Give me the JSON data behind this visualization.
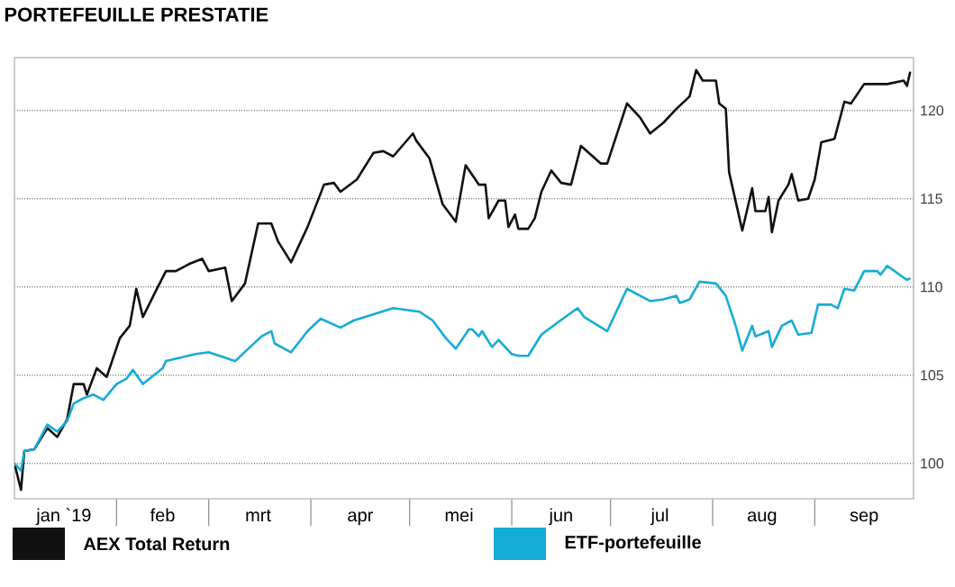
{
  "chart_data": {
    "type": "line",
    "title": "PORTEFEUILLE PRESTATIE",
    "xlim": [
      "2019-01-01",
      "2019-10-01"
    ],
    "xticks": [
      {
        "value": "2019-01-16",
        "label": "jan `19"
      },
      {
        "value": "2019-02-01",
        "label": null
      },
      {
        "value": "2019-02-15",
        "label": "feb"
      },
      {
        "value": "2019-03-01",
        "label": null
      },
      {
        "value": "2019-03-16",
        "label": "mrt"
      },
      {
        "value": "2019-04-01",
        "label": null
      },
      {
        "value": "2019-04-16",
        "label": "apr"
      },
      {
        "value": "2019-05-01",
        "label": null
      },
      {
        "value": "2019-05-16",
        "label": "mei"
      },
      {
        "value": "2019-06-01",
        "label": null
      },
      {
        "value": "2019-06-16",
        "label": "jun"
      },
      {
        "value": "2019-07-01",
        "label": null
      },
      {
        "value": "2019-07-16",
        "label": "jul"
      },
      {
        "value": "2019-08-01",
        "label": null
      },
      {
        "value": "2019-08-16",
        "label": "aug"
      },
      {
        "value": "2019-09-01",
        "label": null
      },
      {
        "value": "2019-09-16",
        "label": "sep"
      }
    ],
    "ylim": [
      98,
      123
    ],
    "yticks": [
      100,
      105,
      110,
      115,
      120
    ],
    "grid": "y",
    "legend": "bottom",
    "line_style": "solid",
    "marker": "none",
    "series": [
      {
        "name": "AEX Total Return",
        "color": "#111111",
        "x": [
          "2019-01-01",
          "2019-01-03",
          "2019-01-04",
          "2019-01-07",
          "2019-01-11",
          "2019-01-14",
          "2019-01-17",
          "2019-01-19",
          "2019-01-22",
          "2019-01-23",
          "2019-01-26",
          "2019-01-29",
          "2019-02-02",
          "2019-02-05",
          "2019-02-07",
          "2019-02-09",
          "2019-02-13",
          "2019-02-16",
          "2019-02-19",
          "2019-02-23",
          "2019-02-27",
          "2019-03-01",
          "2019-03-06",
          "2019-03-08",
          "2019-03-12",
          "2019-03-16",
          "2019-03-20",
          "2019-03-22",
          "2019-03-26",
          "2019-03-31",
          "2019-04-05",
          "2019-04-08",
          "2019-04-10",
          "2019-04-15",
          "2019-04-20",
          "2019-04-23",
          "2019-04-26",
          "2019-05-02",
          "2019-05-03",
          "2019-05-07",
          "2019-05-11",
          "2019-05-15",
          "2019-05-18",
          "2019-05-22",
          "2019-05-24",
          "2019-05-25",
          "2019-05-28",
          "2019-05-30",
          "2019-05-31",
          "2019-06-02",
          "2019-06-03",
          "2019-06-06",
          "2019-06-08",
          "2019-06-10",
          "2019-06-13",
          "2019-06-16",
          "2019-06-19",
          "2019-06-22",
          "2019-06-28",
          "2019-06-30",
          "2019-07-06",
          "2019-07-10",
          "2019-07-13",
          "2019-07-17",
          "2019-07-21",
          "2019-07-25",
          "2019-07-27",
          "2019-07-29",
          "2019-08-02",
          "2019-08-03",
          "2019-08-05",
          "2019-08-06",
          "2019-08-10",
          "2019-08-13",
          "2019-08-14",
          "2019-08-17",
          "2019-08-18",
          "2019-08-19",
          "2019-08-21",
          "2019-08-24",
          "2019-08-25",
          "2019-08-27",
          "2019-08-30",
          "2019-09-01",
          "2019-09-03",
          "2019-09-07",
          "2019-09-10",
          "2019-09-12",
          "2019-09-16",
          "2019-09-23",
          "2019-09-28",
          "2019-09-29",
          "2019-09-30"
        ],
        "values": [
          100,
          98.5,
          100.7,
          100.8,
          102.0,
          101.5,
          102.5,
          104.5,
          104.5,
          103.9,
          105.4,
          104.9,
          107.1,
          107.8,
          109.9,
          108.3,
          109.8,
          110.9,
          110.9,
          111.3,
          111.6,
          110.9,
          111.1,
          109.2,
          110.2,
          113.6,
          113.6,
          112.6,
          111.4,
          113.4,
          115.8,
          115.9,
          115.4,
          116.1,
          117.6,
          117.7,
          117.4,
          118.7,
          118.3,
          117.3,
          114.7,
          113.7,
          116.9,
          115.8,
          115.8,
          113.9,
          114.9,
          114.9,
          113.4,
          114.1,
          113.3,
          113.3,
          113.9,
          115.4,
          116.6,
          115.9,
          115.8,
          118.0,
          117.0,
          117.0,
          120.4,
          119.6,
          118.7,
          119.3,
          120.1,
          120.8,
          122.3,
          121.7,
          121.7,
          120.4,
          120.1,
          116.5,
          113.2,
          115.6,
          114.3,
          114.3,
          115.1,
          113.1,
          114.9,
          115.8,
          116.4,
          114.9,
          115.0,
          116.1,
          118.2,
          118.4,
          120.5,
          120.4,
          121.5,
          121.5,
          121.7,
          121.4,
          122.2
        ]
      },
      {
        "name": "ETF-portefeuille",
        "color": "#14acd6",
        "x": [
          "2019-01-01",
          "2019-01-03",
          "2019-01-04",
          "2019-01-07",
          "2019-01-11",
          "2019-01-14",
          "2019-01-17",
          "2019-01-19",
          "2019-01-22",
          "2019-01-25",
          "2019-01-28",
          "2019-02-01",
          "2019-02-04",
          "2019-02-06",
          "2019-02-09",
          "2019-02-15",
          "2019-02-16",
          "2019-02-25",
          "2019-03-01",
          "2019-03-09",
          "2019-03-17",
          "2019-03-20",
          "2019-03-21",
          "2019-03-26",
          "2019-03-31",
          "2019-04-04",
          "2019-04-10",
          "2019-04-14",
          "2019-04-26",
          "2019-05-04",
          "2019-05-08",
          "2019-05-12",
          "2019-05-15",
          "2019-05-19",
          "2019-05-20",
          "2019-05-22",
          "2019-05-23",
          "2019-05-26",
          "2019-05-28",
          "2019-06-01",
          "2019-06-03",
          "2019-06-06",
          "2019-06-10",
          "2019-06-15",
          "2019-06-21",
          "2019-06-23",
          "2019-06-30",
          "2019-07-06",
          "2019-07-13",
          "2019-07-17",
          "2019-07-21",
          "2019-07-22",
          "2019-07-25",
          "2019-07-28",
          "2019-08-02",
          "2019-08-05",
          "2019-08-08",
          "2019-08-10",
          "2019-08-13",
          "2019-08-14",
          "2019-08-18",
          "2019-08-19",
          "2019-08-22",
          "2019-08-25",
          "2019-08-27",
          "2019-08-31",
          "2019-09-02",
          "2019-09-06",
          "2019-09-08",
          "2019-09-10",
          "2019-09-13",
          "2019-09-16",
          "2019-09-20",
          "2019-09-21",
          "2019-09-23",
          "2019-09-29",
          "2019-09-30"
        ],
        "values": [
          100,
          99.6,
          100.7,
          100.8,
          102.2,
          101.8,
          102.4,
          103.4,
          103.7,
          103.9,
          103.6,
          104.5,
          104.8,
          105.3,
          104.5,
          105.4,
          105.8,
          106.2,
          106.3,
          105.8,
          107.2,
          107.5,
          106.8,
          106.3,
          107.5,
          108.2,
          107.7,
          108.1,
          108.8,
          108.6,
          108.1,
          107.1,
          106.5,
          107.6,
          107.6,
          107.2,
          107.5,
          106.6,
          107.0,
          106.2,
          106.1,
          106.1,
          107.3,
          108.0,
          108.8,
          108.3,
          107.5,
          109.9,
          109.2,
          109.3,
          109.5,
          109.1,
          109.3,
          110.3,
          110.2,
          109.5,
          107.8,
          106.4,
          107.8,
          107.2,
          107.5,
          106.6,
          107.8,
          108.1,
          107.3,
          107.4,
          109.0,
          109.0,
          108.8,
          109.9,
          109.8,
          110.9,
          110.9,
          110.7,
          111.2,
          110.4,
          110.5
        ]
      }
    ]
  }
}
